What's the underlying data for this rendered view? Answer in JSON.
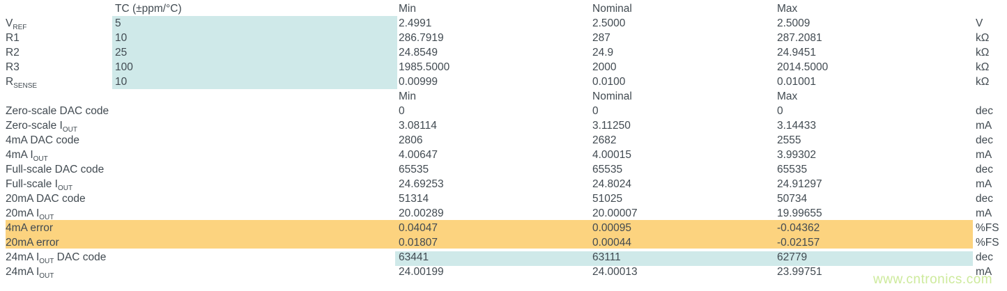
{
  "colors": {
    "text": "#414a51",
    "highlight_teal": "#cfe9e9",
    "highlight_orange": "#fcd37f",
    "watermark": "#cdea9c",
    "background": "#ffffff"
  },
  "watermark": {
    "text": "www.cntronics.com"
  },
  "table1": {
    "header": {
      "tc": "TC (±ppm/°C)",
      "min": "Min",
      "nominal": "Nominal",
      "max": "Max"
    },
    "rows": [
      {
        "label_pre": "V",
        "label_sub": "REF",
        "label_post": "",
        "tc": "5",
        "min": "2.4991",
        "nominal": "2.5000",
        "max": "2.5009",
        "unit": "V",
        "highlight": "teal-tc-block"
      },
      {
        "label_pre": "R1",
        "label_sub": "",
        "label_post": "",
        "tc": "10",
        "min": "286.7919",
        "nominal": "287",
        "max": "287.2081",
        "unit": "kΩ",
        "highlight": "teal-tc-block"
      },
      {
        "label_pre": "R2",
        "label_sub": "",
        "label_post": "",
        "tc": "25",
        "min": "24.8549",
        "nominal": "24.9",
        "max": "24.9451",
        "unit": "kΩ",
        "highlight": "teal-tc-block"
      },
      {
        "label_pre": "R3",
        "label_sub": "",
        "label_post": "",
        "tc": "100",
        "min": "1985.5000",
        "nominal": "2000",
        "max": "2014.5000",
        "unit": "kΩ",
        "highlight": "teal-tc-block"
      },
      {
        "label_pre": "R",
        "label_sub": "SENSE",
        "label_post": "",
        "tc": "10",
        "min": "0.00999",
        "nominal": "0.0100",
        "max": "0.01001",
        "unit": "kΩ",
        "highlight": "teal-tc-block"
      }
    ]
  },
  "table2": {
    "header": {
      "min": "Min",
      "nominal": "Nominal",
      "max": "Max"
    },
    "rows": [
      {
        "label_pre": "Zero-scale DAC code",
        "label_sub": "",
        "label_post": "",
        "min": "0",
        "nominal": "0",
        "max": "0",
        "unit": "dec",
        "highlight": "none"
      },
      {
        "label_pre": "Zero-scale I",
        "label_sub": "OUT",
        "label_post": "",
        "min": "3.08114",
        "nominal": "3.11250",
        "max": "3.14433",
        "unit": "mA",
        "highlight": "none"
      },
      {
        "label_pre": "4mA DAC code",
        "label_sub": "",
        "label_post": "",
        "min": "2806",
        "nominal": "2682",
        "max": "2555",
        "unit": "dec",
        "highlight": "none"
      },
      {
        "label_pre": "4mA I",
        "label_sub": "OUT",
        "label_post": "",
        "min": "4.00647",
        "nominal": "4.00015",
        "max": "3.99302",
        "unit": "mA",
        "highlight": "none"
      },
      {
        "label_pre": "Full-scale DAC code",
        "label_sub": "",
        "label_post": "",
        "min": "65535",
        "nominal": "65535",
        "max": "65535",
        "unit": "dec",
        "highlight": "none"
      },
      {
        "label_pre": "Full-scale I",
        "label_sub": "OUT",
        "label_post": "",
        "min": "24.69253",
        "nominal": "24.8024",
        "max": "24.91297",
        "unit": "mA",
        "highlight": "none"
      },
      {
        "label_pre": "20mA DAC code",
        "label_sub": "",
        "label_post": "",
        "min": "51314",
        "nominal": "51025",
        "max": "50734",
        "unit": "dec",
        "highlight": "none"
      },
      {
        "label_pre": "20mA I",
        "label_sub": "OUT",
        "label_post": "",
        "min": "20.00289",
        "nominal": "20.00007",
        "max": "19.99655",
        "unit": "mA",
        "highlight": "none"
      },
      {
        "label_pre": "4mA error",
        "label_sub": "",
        "label_post": "",
        "min": "0.04047",
        "nominal": "0.00095",
        "max": "-0.04362",
        "unit": "%FS",
        "highlight": "orange-full-row"
      },
      {
        "label_pre": "20mA error",
        "label_sub": "",
        "label_post": "",
        "min": "0.01807",
        "nominal": "0.00044",
        "max": "-0.02157",
        "unit": "%FS",
        "highlight": "orange-full-row"
      },
      {
        "label_pre": "24mA I",
        "label_sub": "OUT",
        "label_post": " DAC code",
        "min": "63441",
        "nominal": "63111",
        "max": "62779",
        "unit": "dec",
        "highlight": "teal-values"
      },
      {
        "label_pre": "24mA I",
        "label_sub": "OUT",
        "label_post": "",
        "min": "24.00199",
        "nominal": "24.00013",
        "max": "23.99751",
        "unit": "mA",
        "highlight": "none"
      }
    ]
  }
}
